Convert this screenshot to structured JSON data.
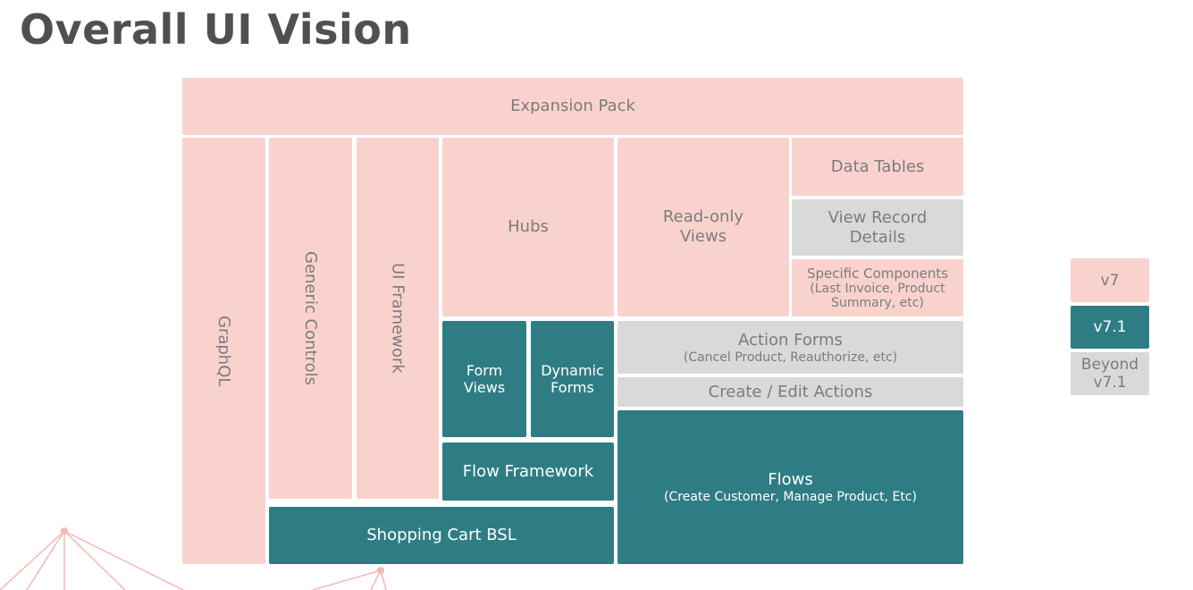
{
  "page_title": "Overall UI Vision",
  "colors": {
    "v7": "#f9d2ce",
    "v7_1": "#2f7d84",
    "beyond_v7_1": "#d9d9d9"
  },
  "blocks": {
    "expansion_pack": "Expansion Pack",
    "graphql": "GraphQL",
    "generic_controls": "Generic Controls",
    "ui_framework": "UI Framework",
    "hubs": "Hubs",
    "read_only_views": {
      "line1": "Read-only",
      "line2": "Views"
    },
    "data_tables": "Data Tables",
    "view_record_details": {
      "line1": "View Record",
      "line2": "Details"
    },
    "specific_components": {
      "line1": "Specific Components",
      "line2": "(Last Invoice, Product",
      "line3": "Summary, etc)"
    },
    "form_views": {
      "line1": "Form",
      "line2": "Views"
    },
    "dynamic_forms": {
      "line1": "Dynamic",
      "line2": "Forms"
    },
    "action_forms": {
      "title": "Action Forms",
      "subtitle": "(Cancel Product, Reauthorize, etc)"
    },
    "create_edit_actions": "Create / Edit Actions",
    "flow_framework": "Flow Framework",
    "flows": {
      "title": "Flows",
      "subtitle": "(Create Customer, Manage Product, Etc)"
    },
    "shopping_cart_bsl": "Shopping Cart BSL"
  },
  "legend": {
    "v7": "v7",
    "v7_1": "v7.1",
    "beyond": {
      "line1": "Beyond",
      "line2": "v7.1"
    }
  }
}
